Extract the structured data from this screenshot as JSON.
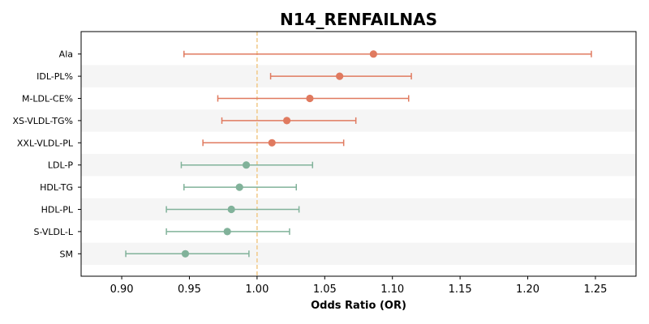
{
  "chart_data": {
    "type": "forest",
    "title": "N14_RENFAILNAS",
    "xlabel": "Odds Ratio (OR)",
    "ylabel": "",
    "xlim": [
      0.87,
      1.28
    ],
    "xticks": [
      "0.90",
      "0.95",
      "1.00",
      "1.05",
      "1.10",
      "1.15",
      "1.20",
      "1.25"
    ],
    "reference_line": 1.0,
    "grid": false,
    "alternate_row_shading": true,
    "colors": {
      "increased": "#e07a5f",
      "decreased": "#81b29a",
      "reference": "#f2cc8f",
      "row_shade": "#f5f5f5"
    },
    "categories": [
      "Ala",
      "IDL-PL%",
      "M-LDL-CE%",
      "XS-VLDL-TG%",
      "XXL-VLDL-PL",
      "LDL-P",
      "HDL-TG",
      "HDL-PL",
      "S-VLDL-L",
      "SM"
    ],
    "or": [
      1.086,
      1.061,
      1.039,
      1.022,
      1.011,
      0.992,
      0.987,
      0.981,
      0.978,
      0.947
    ],
    "ci_lower": [
      0.946,
      1.01,
      0.971,
      0.974,
      0.96,
      0.944,
      0.946,
      0.933,
      0.933,
      0.903
    ],
    "ci_upper": [
      1.247,
      1.114,
      1.112,
      1.073,
      1.064,
      1.041,
      1.029,
      1.031,
      1.024,
      0.994
    ]
  }
}
